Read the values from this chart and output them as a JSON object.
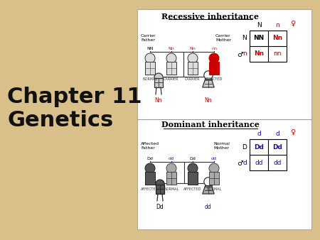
{
  "bg_color": "#D9C08A",
  "panel_bg": "#FFFFFF",
  "black": "#000000",
  "red": "#CC0000",
  "blue": "#1111AA",
  "gray_light": "#CCCCCC",
  "gray_dark": "#666666",
  "title_text": "Chapter 11\nGenetics",
  "title_color": "#111111",
  "panel1_title": "Recessive inheritance",
  "panel2_title": "Dominant inheritance",
  "fig_w": 4.5,
  "fig_h": 3.38,
  "dpi": 100
}
